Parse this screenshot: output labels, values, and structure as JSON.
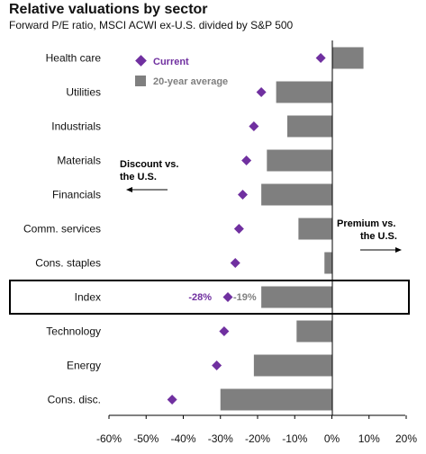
{
  "header": {
    "title": "Relative valuations by sector",
    "subtitle": "Forward P/E ratio, MSCI ACWI ex-U.S. divided by S&P 500"
  },
  "colors": {
    "bar": "#7f7f7f",
    "current": "#7030a0",
    "axis": "#000000"
  },
  "chart_data": {
    "type": "bar",
    "orientation": "horizontal",
    "title": "Relative valuations by sector",
    "subtitle": "Forward P/E ratio, MSCI ACWI ex-U.S. divided by S&P 500",
    "categories": [
      "Health care",
      "Utilities",
      "Industrials",
      "Materials",
      "Financials",
      "Comm. services",
      "Cons. staples",
      "Index",
      "Technology",
      "Energy",
      "Cons. disc."
    ],
    "series": [
      {
        "name": "20-year average",
        "kind": "bar",
        "values": [
          8.5,
          -15,
          -12,
          -17.5,
          -19,
          -9,
          -2,
          -19,
          -9.5,
          -21,
          -30
        ]
      },
      {
        "name": "Current",
        "kind": "diamond",
        "values": [
          -3,
          -19,
          -21,
          -23,
          -24,
          -25,
          -26,
          -28,
          -29,
          -31,
          -43
        ]
      }
    ],
    "xlim": [
      -60,
      20
    ],
    "xticks": [
      -60,
      -50,
      -40,
      -30,
      -20,
      -10,
      0,
      10,
      20
    ],
    "xtick_labels": [
      "-60%",
      "-50%",
      "-40%",
      "-30%",
      "-20%",
      "-10%",
      "0%",
      "10%",
      "20%"
    ],
    "highlight_category": "Index",
    "data_labels": {
      "current": "-28%",
      "average": "-19%"
    },
    "legend": {
      "position": "top-left",
      "current": "Current",
      "average": "20-year average"
    },
    "annotations": {
      "discount_line1": "Discount vs.",
      "discount_line2": "the U.S.",
      "premium_line1": "Premium vs.",
      "premium_line2": "the U.S."
    },
    "grid": false
  }
}
